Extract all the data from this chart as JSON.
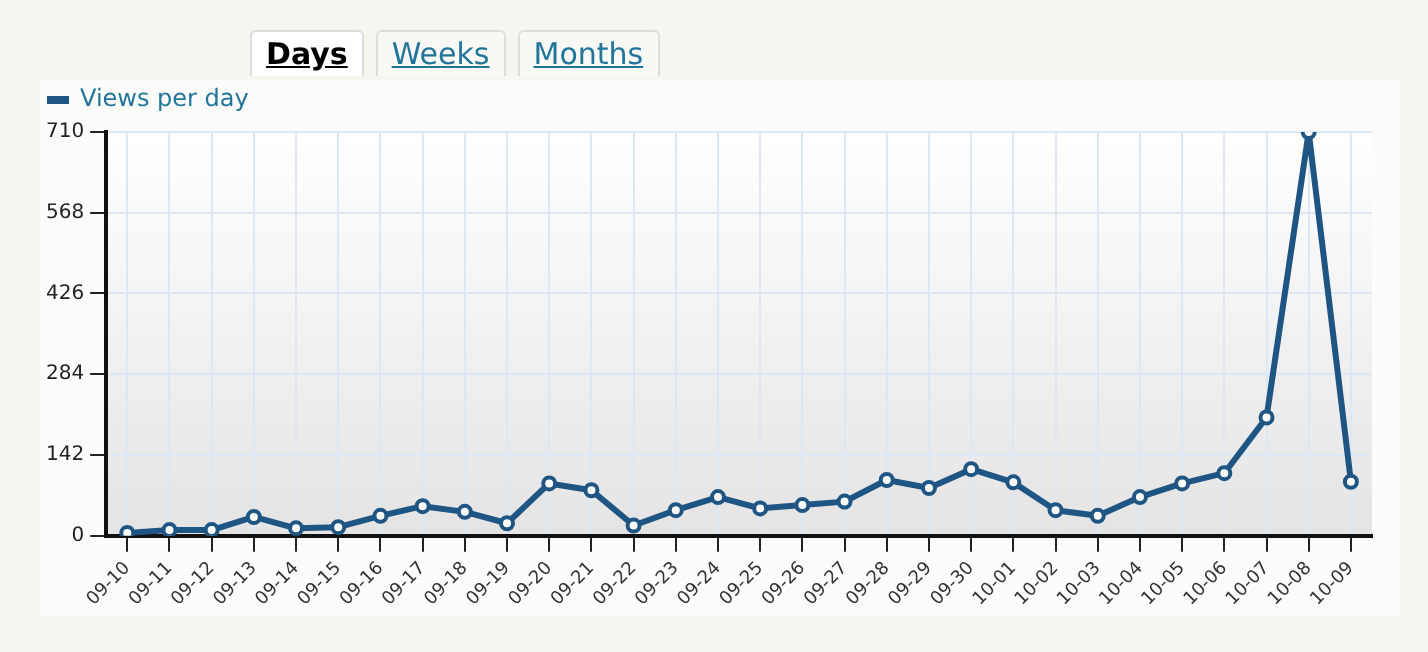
{
  "chart_data": {
    "type": "line",
    "annotations": [
      "Days",
      "Weeks",
      "Months"
    ],
    "categories": [
      "09-10",
      "09-11",
      "09-12",
      "09-13",
      "09-14",
      "09-15",
      "09-16",
      "09-17",
      "09-18",
      "09-19",
      "09-20",
      "09-21",
      "09-22",
      "09-23",
      "09-24",
      "09-25",
      "09-26",
      "09-27",
      "09-28",
      "09-29",
      "09-30",
      "10-01",
      "10-02",
      "10-03",
      "10-04",
      "10-05",
      "10-06",
      "10-07",
      "10-08",
      "10-09"
    ],
    "series": [
      {
        "name": "Views per day",
        "color": "#1f5582",
        "values": [
          5,
          10,
          10,
          33,
          13,
          15,
          35,
          52,
          42,
          22,
          92,
          80,
          18,
          45,
          68,
          48,
          54,
          60,
          98,
          84,
          117,
          94,
          45,
          35,
          68,
          92,
          110,
          208,
          710,
          95
        ]
      }
    ],
    "ylim": [
      0,
      710
    ],
    "yticks": [
      0,
      142,
      284,
      426,
      568,
      710
    ],
    "grid": true,
    "legend": "top left",
    "marker": "circle",
    "line_style": "solid"
  }
}
